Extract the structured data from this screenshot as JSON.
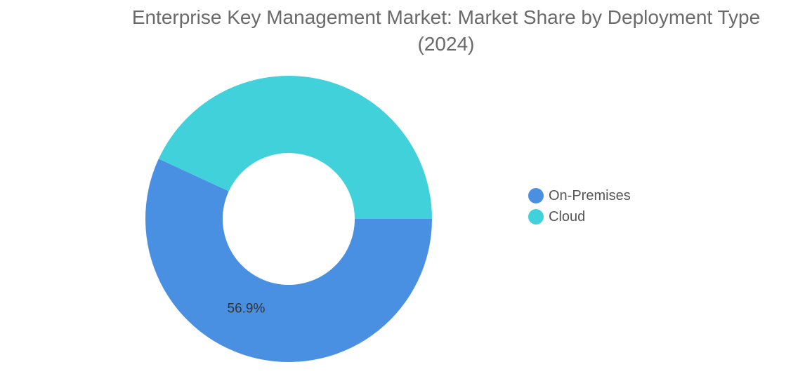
{
  "chart_data": {
    "type": "pie",
    "title": "Enterprise Key Management Market: Market Share by Deployment Type",
    "subtitle": "(2024)",
    "donut": true,
    "categories": [
      "On-Premises",
      "Cloud"
    ],
    "values": [
      56.9,
      43.1
    ],
    "data_labels": [
      "56.9%",
      ""
    ],
    "colors": [
      "#4a90e2",
      "#41d1db"
    ],
    "legend": {
      "position": "right",
      "entries": [
        "On-Premises",
        "Cloud"
      ]
    },
    "unit": "%"
  }
}
